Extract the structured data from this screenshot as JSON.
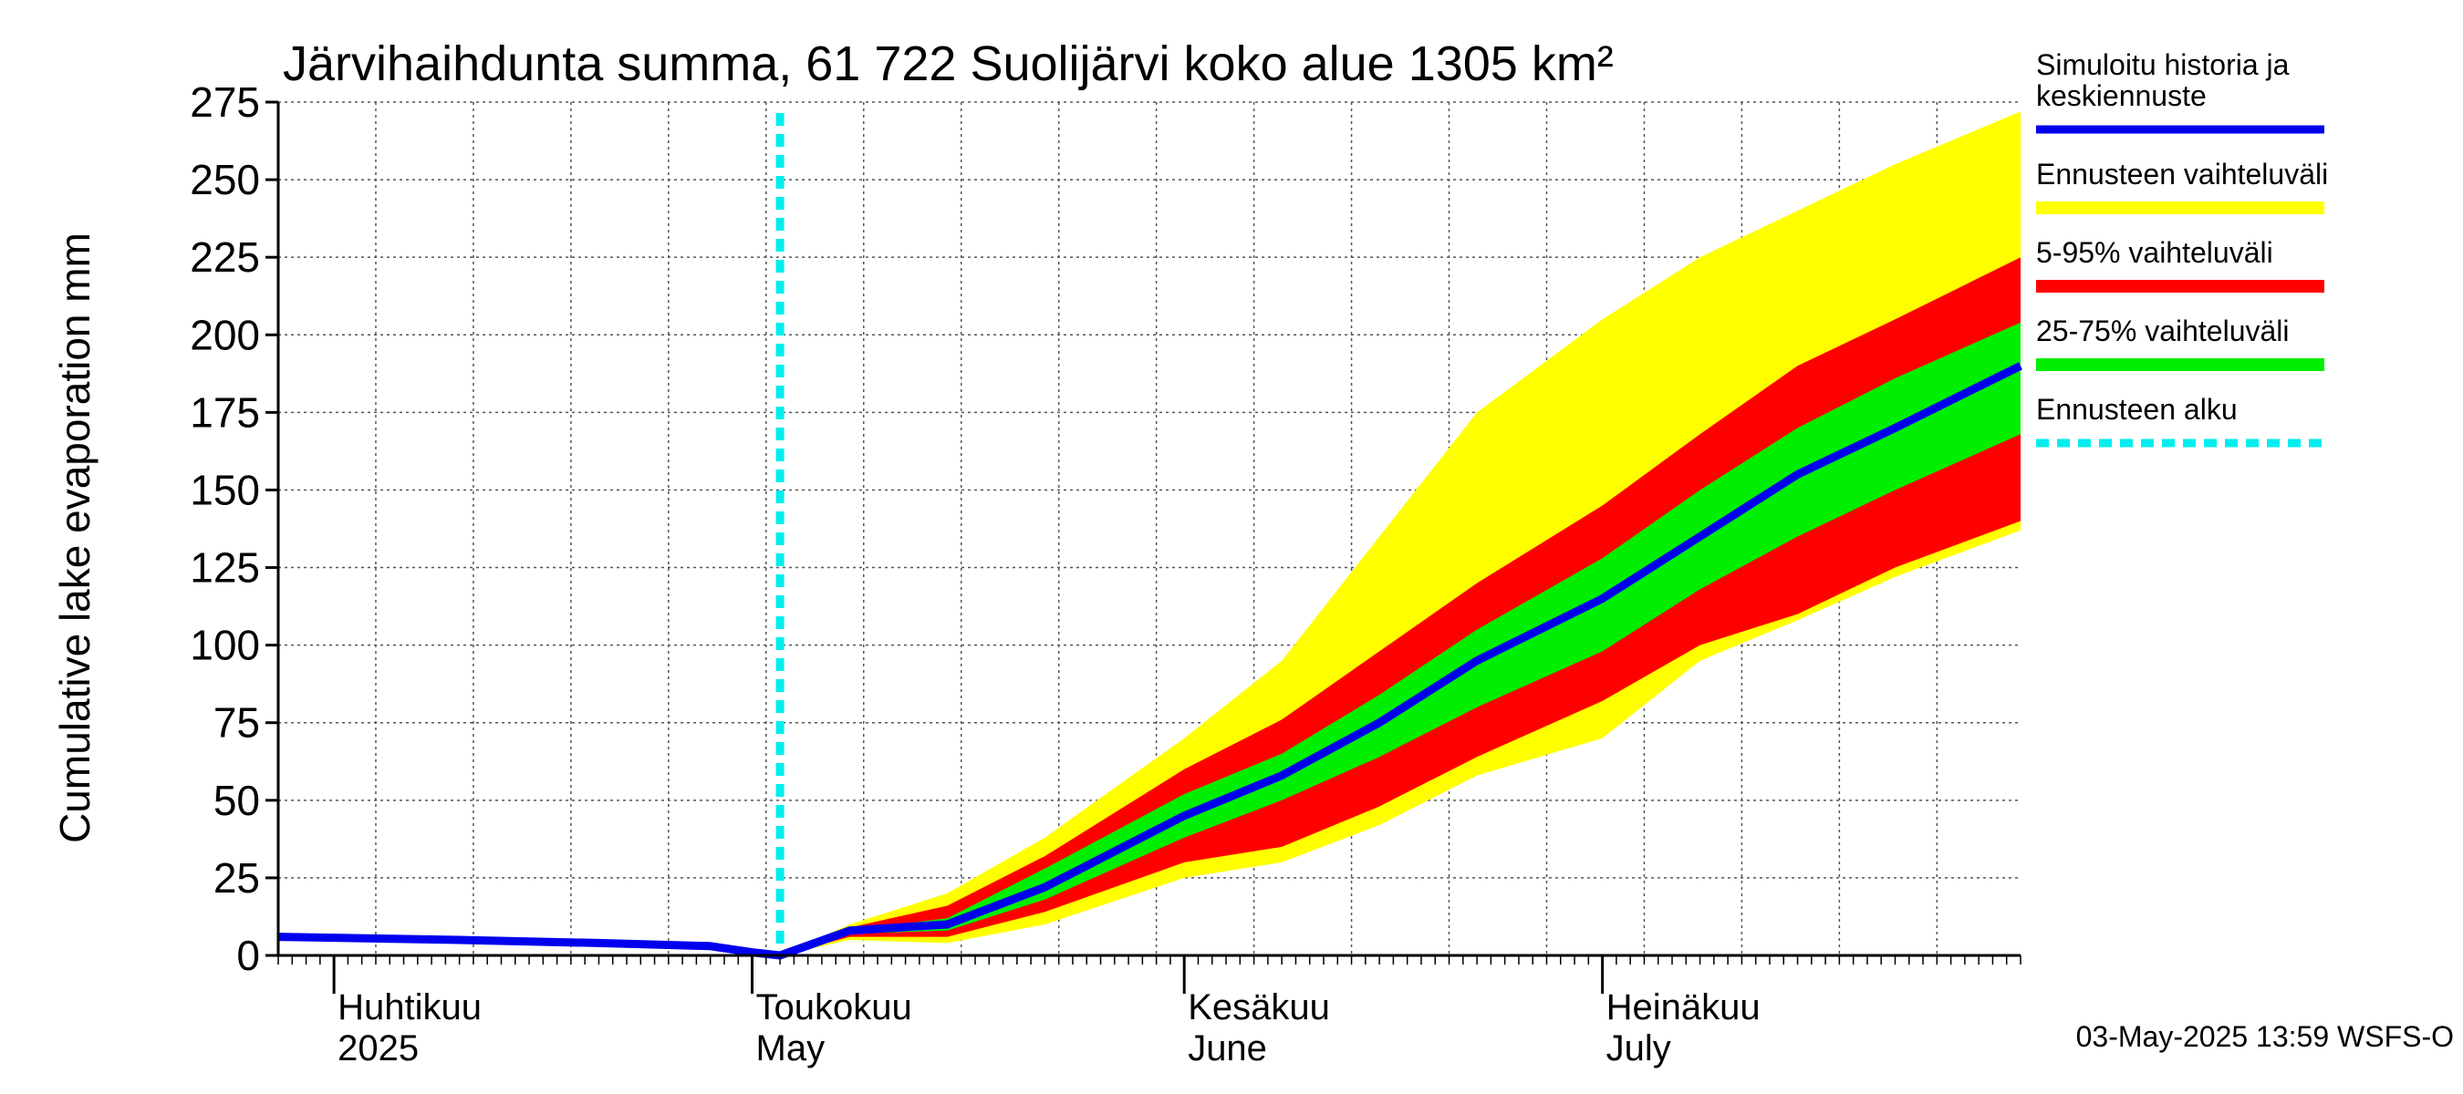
{
  "chart_data": {
    "type": "area",
    "title": "Järvihaihdunta summa, 61 722 Suolijärvi koko alue 1305 km²",
    "ylabel": "Cumulative lake evaporation   mm",
    "xlabel": "",
    "ylim": [
      0,
      275
    ],
    "yticks": [
      0,
      25,
      50,
      75,
      100,
      125,
      150,
      175,
      200,
      225,
      250,
      275
    ],
    "xlim": [
      "2025-03-28",
      "2025-07-31"
    ],
    "grid": true,
    "legend_position": "right",
    "month_labels": [
      {
        "date": "2025-04-01",
        "line1": "Huhtikuu",
        "line2": "2025"
      },
      {
        "date": "2025-05-01",
        "line1": "Toukokuu",
        "line2": "May"
      },
      {
        "date": "2025-06-01",
        "line1": "Kesäkuu",
        "line2": "June"
      },
      {
        "date": "2025-07-01",
        "line1": "Heinäkuu",
        "line2": "July"
      }
    ],
    "forecast_start": "2025-05-03",
    "colors": {
      "history": "#0000ee",
      "range_full": "#ffff00",
      "range_5_95": "#ff0000",
      "range_25_75": "#00ee00",
      "forecast_start": "#00eeee"
    },
    "legend": [
      {
        "key": "history",
        "label": "Simuloitu historia ja keskiennuste",
        "style": "solid"
      },
      {
        "key": "range_full",
        "label": "Ennusteen vaihteluväli",
        "style": "band"
      },
      {
        "key": "range_5_95",
        "label": "5-95% vaihteluväli",
        "style": "band"
      },
      {
        "key": "range_25_75",
        "label": "25-75% vaihteluväli",
        "style": "band"
      },
      {
        "key": "forecast_start",
        "label": "Ennusteen alku",
        "style": "dashed"
      }
    ],
    "history": {
      "dates": [
        "2025-03-28",
        "2025-04-10",
        "2025-04-20",
        "2025-04-28",
        "2025-05-01",
        "2025-05-03"
      ],
      "values": [
        6,
        5,
        4,
        3,
        1,
        0
      ]
    },
    "forecast": {
      "dates": [
        "2025-05-03",
        "2025-05-08",
        "2025-05-15",
        "2025-05-22",
        "2025-06-01",
        "2025-06-08",
        "2025-06-15",
        "2025-06-22",
        "2025-07-01",
        "2025-07-08",
        "2025-07-15",
        "2025-07-22",
        "2025-07-31"
      ],
      "median": [
        0,
        8,
        10,
        22,
        45,
        58,
        75,
        95,
        115,
        135,
        155,
        170,
        190
      ],
      "p25": [
        0,
        7,
        8,
        18,
        38,
        50,
        64,
        80,
        98,
        118,
        135,
        150,
        168
      ],
      "p75": [
        0,
        8,
        12,
        28,
        52,
        65,
        84,
        105,
        128,
        150,
        170,
        186,
        204
      ],
      "p5": [
        0,
        6,
        6,
        14,
        30,
        35,
        48,
        64,
        82,
        100,
        110,
        125,
        140
      ],
      "p95": [
        0,
        9,
        16,
        32,
        60,
        76,
        98,
        120,
        145,
        168,
        190,
        205,
        225
      ],
      "min": [
        0,
        5,
        4,
        10,
        25,
        30,
        42,
        58,
        70,
        95,
        108,
        122,
        137
      ],
      "max": [
        0,
        10,
        20,
        38,
        70,
        95,
        135,
        175,
        205,
        225,
        240,
        255,
        272
      ]
    }
  },
  "timestamp": "03-May-2025 13:59 WSFS-O"
}
